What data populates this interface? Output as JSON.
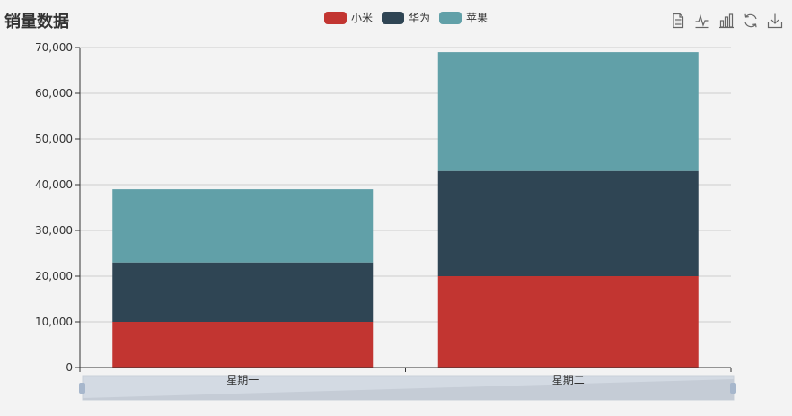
{
  "title": "销量数据",
  "toolbox": [
    {
      "name": "data-view-icon"
    },
    {
      "name": "line-chart-icon"
    },
    {
      "name": "bar-chart-icon"
    },
    {
      "name": "restore-icon"
    },
    {
      "name": "save-image-icon"
    }
  ],
  "colors": {
    "background": "#f3f3f3",
    "axis": "#333333",
    "grid": "#cccccc",
    "datazoom_fill": "#d3dae3",
    "datazoom_handle": "#a7b7cc"
  },
  "chart_data": {
    "type": "bar",
    "stacked": true,
    "title": "销量数据",
    "categories": [
      "星期一",
      "星期二"
    ],
    "series": [
      {
        "name": "小米",
        "color": "#c23531",
        "values": [
          10000,
          20000
        ]
      },
      {
        "name": "华为",
        "color": "#2f4554",
        "values": [
          13000,
          23000
        ]
      },
      {
        "name": "苹果",
        "color": "#61a0a8",
        "values": [
          16000,
          26000
        ]
      }
    ],
    "ylim": [
      0,
      70000
    ],
    "yticks": [
      0,
      10000,
      20000,
      30000,
      40000,
      50000,
      60000,
      70000
    ],
    "ytick_labels": [
      "0",
      "10,000",
      "20,000",
      "30,000",
      "40,000",
      "50,000",
      "60,000",
      "70,000"
    ],
    "grid": true,
    "legend_position": "top-center",
    "datazoom": true
  }
}
